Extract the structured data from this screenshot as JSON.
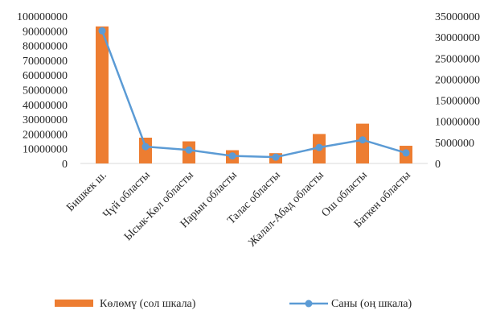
{
  "chart_data": {
    "type": "bar",
    "title": "",
    "categories": [
      "Бишкек ш.",
      "Чүй областы",
      "Ысык-Көл областы",
      "Нарын областы",
      "Талас областы",
      "Жалал-Абад  областы",
      "Ош областы",
      "Баткен областы"
    ],
    "series": [
      {
        "name": "Көлөмү (сол шкала)",
        "type": "bar",
        "axis": "left",
        "color": "#ED7D31",
        "values": [
          93000000,
          17500000,
          15000000,
          9000000,
          7000000,
          20000000,
          27000000,
          12000000
        ]
      },
      {
        "name": "Саны (оң шкала)",
        "type": "line",
        "axis": "right",
        "color": "#5B9BD5",
        "values": [
          31500000,
          4000000,
          3200000,
          1800000,
          1500000,
          3800000,
          5600000,
          2500000
        ]
      }
    ],
    "y_left": {
      "range": [
        0,
        100000000
      ],
      "ticks": [
        "100000000",
        "90000000",
        "80000000",
        "70000000",
        "60000000",
        "50000000",
        "40000000",
        "30000000",
        "20000000",
        "10000000",
        "0"
      ]
    },
    "y_right": {
      "range": [
        0,
        35000000
      ],
      "ticks": [
        "35000000",
        "30000000",
        "25000000",
        "20000000",
        "15000000",
        "10000000",
        "5000000",
        "0"
      ]
    },
    "grid": false,
    "legend_position": "bottom"
  }
}
